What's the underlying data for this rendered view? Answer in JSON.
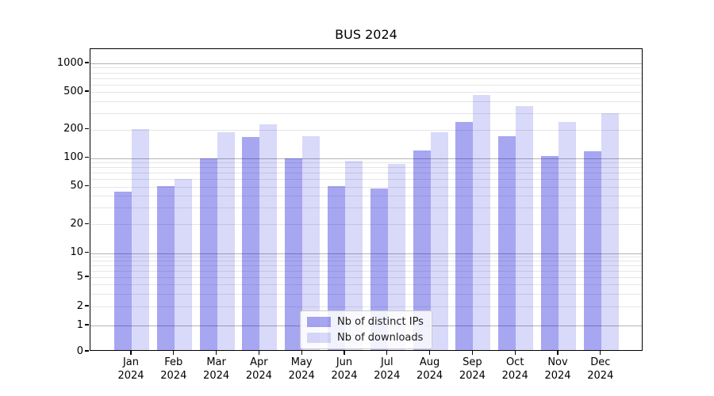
{
  "chart_data": {
    "type": "bar",
    "title": "BUS 2024",
    "categories": [
      "Jan",
      "Feb",
      "Mar",
      "Apr",
      "May",
      "Jun",
      "Jul",
      "Aug",
      "Sep",
      "Oct",
      "Nov",
      "Dec"
    ],
    "category_year": "2024",
    "series": [
      {
        "name": "Nb of distinct IPs",
        "color": "rgba(0,0,215,0.35)",
        "values": [
          43,
          49,
          96,
          162,
          96,
          49,
          46,
          117,
          230,
          163,
          102,
          114
        ]
      },
      {
        "name": "Nb of downloads",
        "color": "rgba(0,0,215,0.15)",
        "values": [
          197,
          58,
          180,
          218,
          165,
          91,
          83,
          180,
          450,
          340,
          232,
          285
        ]
      }
    ],
    "xlabel": "",
    "ylabel": "",
    "y_ticks": [
      0,
      1,
      2,
      5,
      10,
      20,
      50,
      100,
      200,
      500,
      1000
    ],
    "ylim": [
      0,
      1450
    ],
    "y_scale": "symlog",
    "grid": true,
    "legend_position": "bottom-center"
  },
  "colors": {
    "major_grid": "#b3b3b3",
    "minor_grid": "#e6e6e6",
    "axis": "#000000",
    "background": "#ffffff"
  }
}
